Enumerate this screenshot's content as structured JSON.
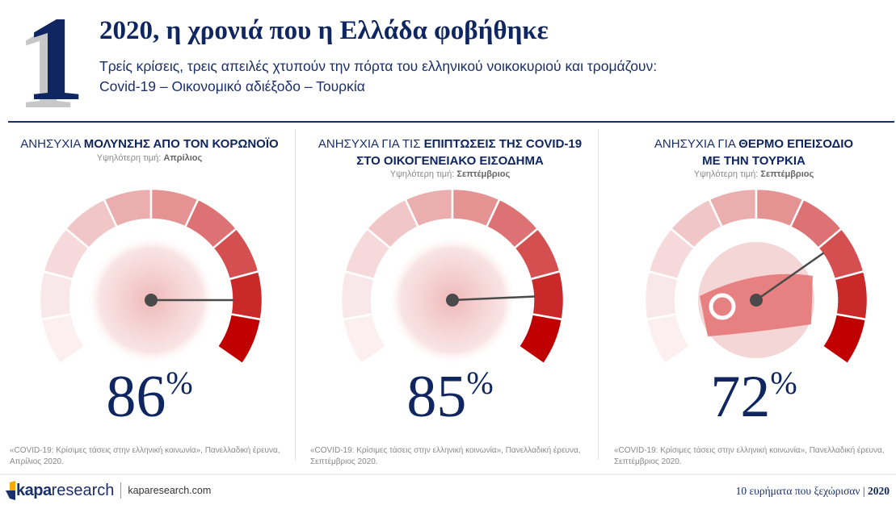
{
  "header": {
    "number": "1",
    "title": "2020, η χρονιά που η Ελλάδα φοβήθηκε",
    "subtitle_line1": "Τρείς κρίσεις, τρεις απειλές χτυπούν την πόρτα του ελληνικού νοικοκυριού και τρομάζουν:",
    "subtitle_line2": "Covid-19 – Οικονομικό αδιέξοδο – Τουρκία"
  },
  "colors": {
    "navy": "#0f2660",
    "gauge_max": "#c00000",
    "gauge_min": "#fbeff0",
    "needle": "#4a4a4a"
  },
  "panels": [
    {
      "head_plain": "ΑΝΗΣΥΧΙΑ ",
      "head_bold": "ΜΟΛΥΝΣΗΣ ΑΠΟ ΤΟΝ ΚΟΡΩΝΟΪΟ",
      "head_line2": "",
      "peak_label": "Υψηλότερη τιμή: ",
      "peak_value": "Απρίλιος",
      "value": 86,
      "value_text": "86",
      "percent_sign": "%",
      "image_icon": "coronavirus-image",
      "note_line1": "«COVID-19: Κρίσιμες τάσεις στην ελληνική κοινωνία», Πανελλαδική έρευνα,",
      "note_line2": "Απρίλιος 2020."
    },
    {
      "head_plain": "ΑΝΗΣΥΧΙΑ ΓΙΑ ΤΙΣ ",
      "head_bold": "ΕΠΙΠΤΩΣΕΙΣ ΤΗΣ COVID-19",
      "head_line2": "ΣΤΟ ΟΙΚΟΓΕΝΕΙΑΚΟ ΕΙΣΟΔΗΜΑ",
      "peak_label": "Υψηλότερη τιμή: ",
      "peak_value": "Σεπτέμβριος",
      "value": 85,
      "value_text": "85",
      "percent_sign": "%",
      "image_icon": "house-coins-image",
      "note_line1": "«COVID-19: Κρίσιμες τάσεις στην ελληνική κοινωνία», Πανελλαδική έρευνα,",
      "note_line2": "Σεπτέμβριος 2020."
    },
    {
      "head_plain": "ΑΝΗΣΥΧΙΑ ΓΙΑ ",
      "head_bold": "ΘΕΡΜΟ ΕΠΕΙΣΟΔΙΟ",
      "head_line2": "ΜΕ ΤΗΝ ΤΟΥΡΚΙΑ",
      "peak_label": "Υψηλότερη τιμή: ",
      "peak_value": "Σεπτέμβριος",
      "value": 72,
      "value_text": "72",
      "percent_sign": "%",
      "image_icon": "turkish-ship-image",
      "note_line1": "«COVID-19: Κρίσιμες τάσεις στην ελληνική κοινωνία», Πανελλαδική έρευνα,",
      "note_line2": "Σεπτέμβριος 2020."
    }
  ],
  "footer": {
    "logo_bold": "kapa",
    "logo_light": "research",
    "website": "kaparesearch.com",
    "right_text": "10 ευρήματα που ξεχώρισαν | ",
    "right_year": "2020"
  }
}
